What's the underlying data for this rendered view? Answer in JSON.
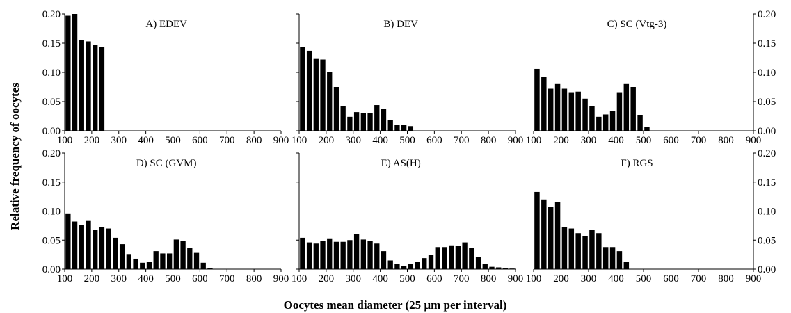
{
  "figure": {
    "ylabel": "Relative frequency of oocytes",
    "xlabel": "Oocytes mean diameter (25 µm per interval)"
  },
  "chart_data": [
    {
      "type": "bar",
      "title": "A) EDEV",
      "x_start": 112.5,
      "bin_width": 25,
      "values": [
        0.197,
        0.2,
        0.155,
        0.153,
        0.147,
        0.144
      ],
      "xlim": [
        100,
        900
      ],
      "xticks": [
        100,
        200,
        300,
        400,
        500,
        600,
        700,
        800,
        900
      ],
      "ylim": [
        0,
        0.2
      ],
      "yticks": [
        "0.00",
        "0.05",
        "0.10",
        "0.15",
        "0.20"
      ]
    },
    {
      "type": "bar",
      "title": "B) DEV",
      "x_start": 112.5,
      "bin_width": 25,
      "values": [
        0.143,
        0.137,
        0.123,
        0.122,
        0.101,
        0.075,
        0.042,
        0.024,
        0.032,
        0.03,
        0.03,
        0.044,
        0.038,
        0.019,
        0.01,
        0.01,
        0.008
      ],
      "xlim": [
        100,
        900
      ],
      "xticks": [
        100,
        200,
        300,
        400,
        500,
        600,
        700,
        800,
        900
      ],
      "ylim": [
        0,
        0.2
      ],
      "yticks": []
    },
    {
      "type": "bar",
      "title": "C) SC (Vtg-3)",
      "x_start": 112.5,
      "bin_width": 25,
      "values": [
        0.106,
        0.092,
        0.072,
        0.08,
        0.072,
        0.066,
        0.067,
        0.055,
        0.042,
        0.024,
        0.028,
        0.034,
        0.066,
        0.08,
        0.075,
        0.027,
        0.006
      ],
      "xlim": [
        100,
        900
      ],
      "xticks": [
        100,
        200,
        300,
        400,
        500,
        600,
        700,
        800,
        900
      ],
      "ylim": [
        0,
        0.2
      ],
      "yticks": [
        "0.00",
        "0.05",
        "0.10",
        "0.15",
        "0.20"
      ]
    },
    {
      "type": "bar",
      "title": "D) SC (GVM)",
      "x_start": 112.5,
      "bin_width": 25,
      "values": [
        0.096,
        0.082,
        0.076,
        0.083,
        0.068,
        0.072,
        0.07,
        0.054,
        0.043,
        0.026,
        0.018,
        0.011,
        0.012,
        0.031,
        0.027,
        0.027,
        0.051,
        0.049,
        0.037,
        0.028,
        0.011,
        0.002
      ],
      "xlim": [
        100,
        900
      ],
      "xticks": [
        100,
        200,
        300,
        400,
        500,
        600,
        700,
        800,
        900
      ],
      "ylim": [
        0,
        0.2
      ],
      "yticks": [
        "0.00",
        "0.05",
        "0.10",
        "0.15",
        "0.20"
      ]
    },
    {
      "type": "bar",
      "title": "E) AS(H)",
      "x_start": 112.5,
      "bin_width": 25,
      "values": [
        0.054,
        0.046,
        0.044,
        0.049,
        0.053,
        0.047,
        0.047,
        0.05,
        0.061,
        0.051,
        0.049,
        0.044,
        0.031,
        0.015,
        0.009,
        0.005,
        0.009,
        0.012,
        0.019,
        0.025,
        0.038,
        0.038,
        0.041,
        0.04,
        0.046,
        0.036,
        0.021,
        0.009,
        0.004,
        0.003,
        0.002,
        0.001
      ],
      "xlim": [
        100,
        900
      ],
      "xticks": [
        100,
        200,
        300,
        400,
        500,
        600,
        700,
        800,
        900
      ],
      "ylim": [
        0,
        0.2
      ],
      "yticks": []
    },
    {
      "type": "bar",
      "title": "F) RGS",
      "x_start": 112.5,
      "bin_width": 25,
      "values": [
        0.133,
        0.12,
        0.107,
        0.115,
        0.073,
        0.07,
        0.062,
        0.057,
        0.068,
        0.062,
        0.038,
        0.038,
        0.031,
        0.013
      ],
      "xlim": [
        100,
        900
      ],
      "xticks": [
        100,
        200,
        300,
        400,
        500,
        600,
        700,
        800,
        900
      ],
      "ylim": [
        0,
        0.2
      ],
      "yticks": [
        "0.00",
        "0.05",
        "0.10",
        "0.15",
        "0.20"
      ]
    }
  ]
}
